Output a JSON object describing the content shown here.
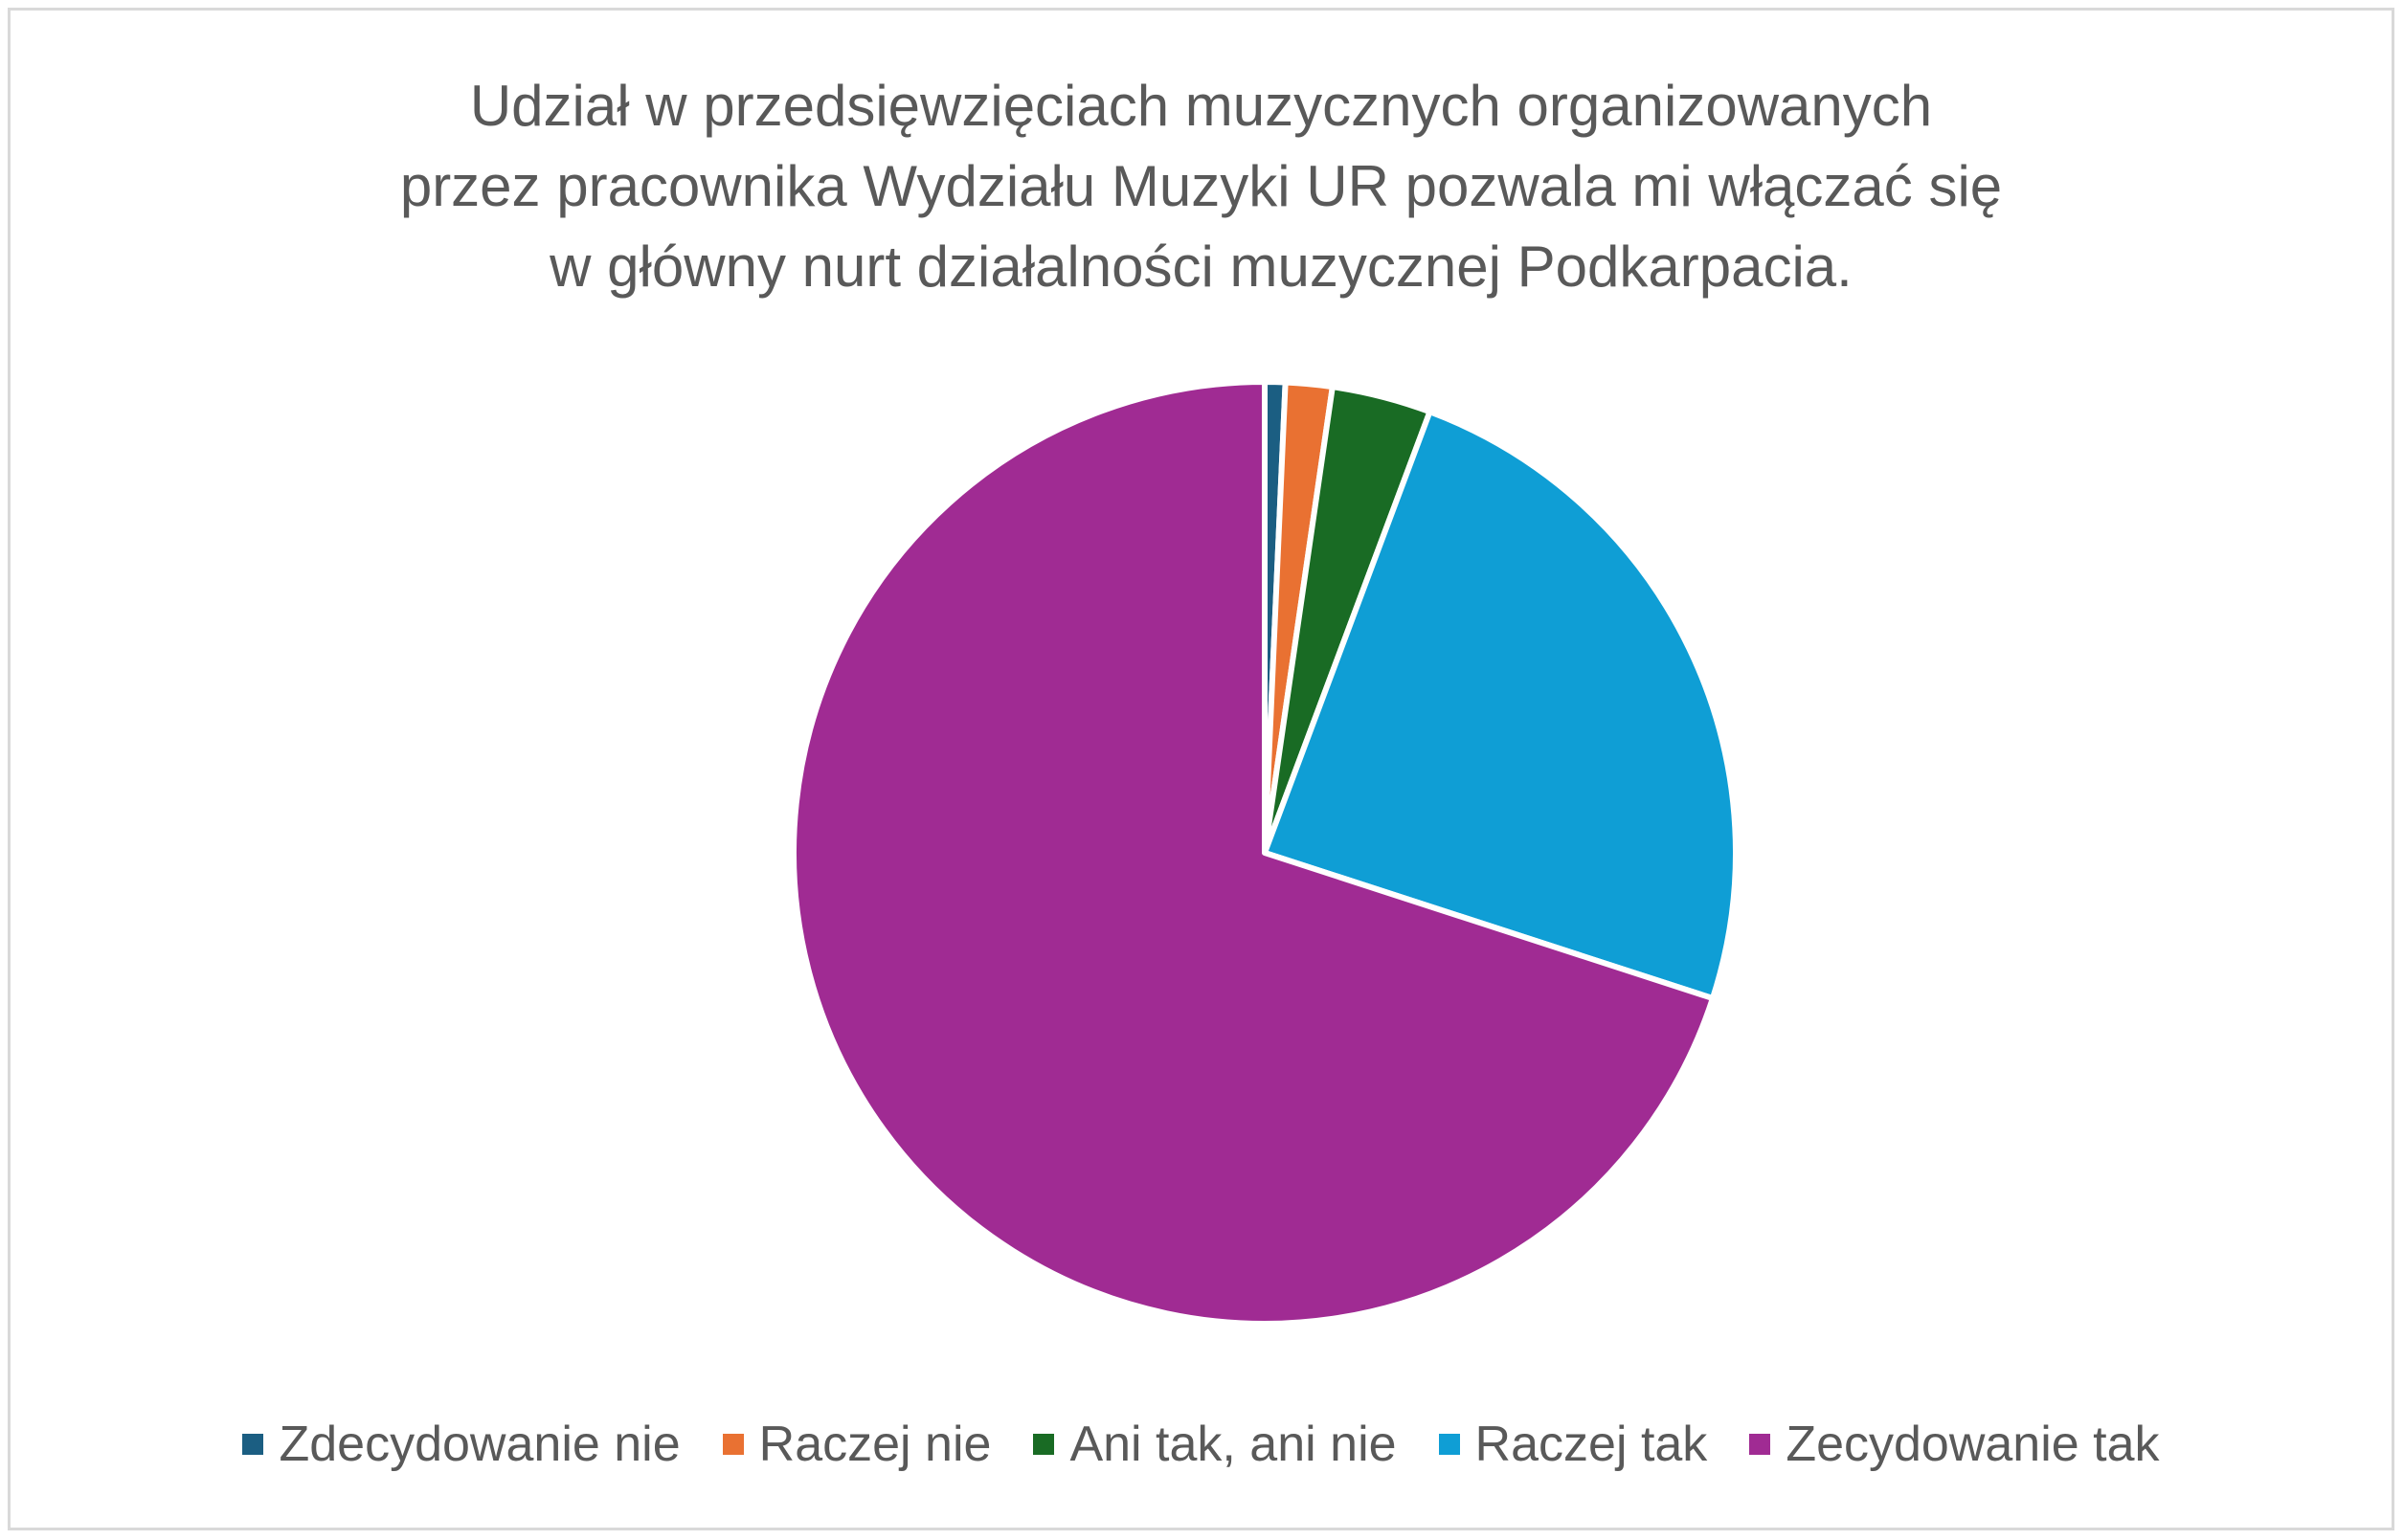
{
  "chart_data": {
    "type": "pie",
    "title_lines": [
      "Udział w przedsięwzięciach muzycznych organizowanych",
      "przez pracownika Wydziału Muzyki UR pozwala mi włączać się",
      "w główny nurt działalności muzycznej Podkarpacia."
    ],
    "categories": [
      "Zdecydowanie nie",
      "Raczej nie",
      "Ani tak, ani nie",
      "Raczej tak",
      "Zecydowanie tak"
    ],
    "values": [
      0.7,
      1.6,
      3.4,
      24.3,
      70.0
    ],
    "colors": [
      "#1b5e82",
      "#e97132",
      "#196b24",
      "#0f9ed5",
      "#a02b93"
    ],
    "legend_position": "bottom",
    "data_labels": false
  }
}
